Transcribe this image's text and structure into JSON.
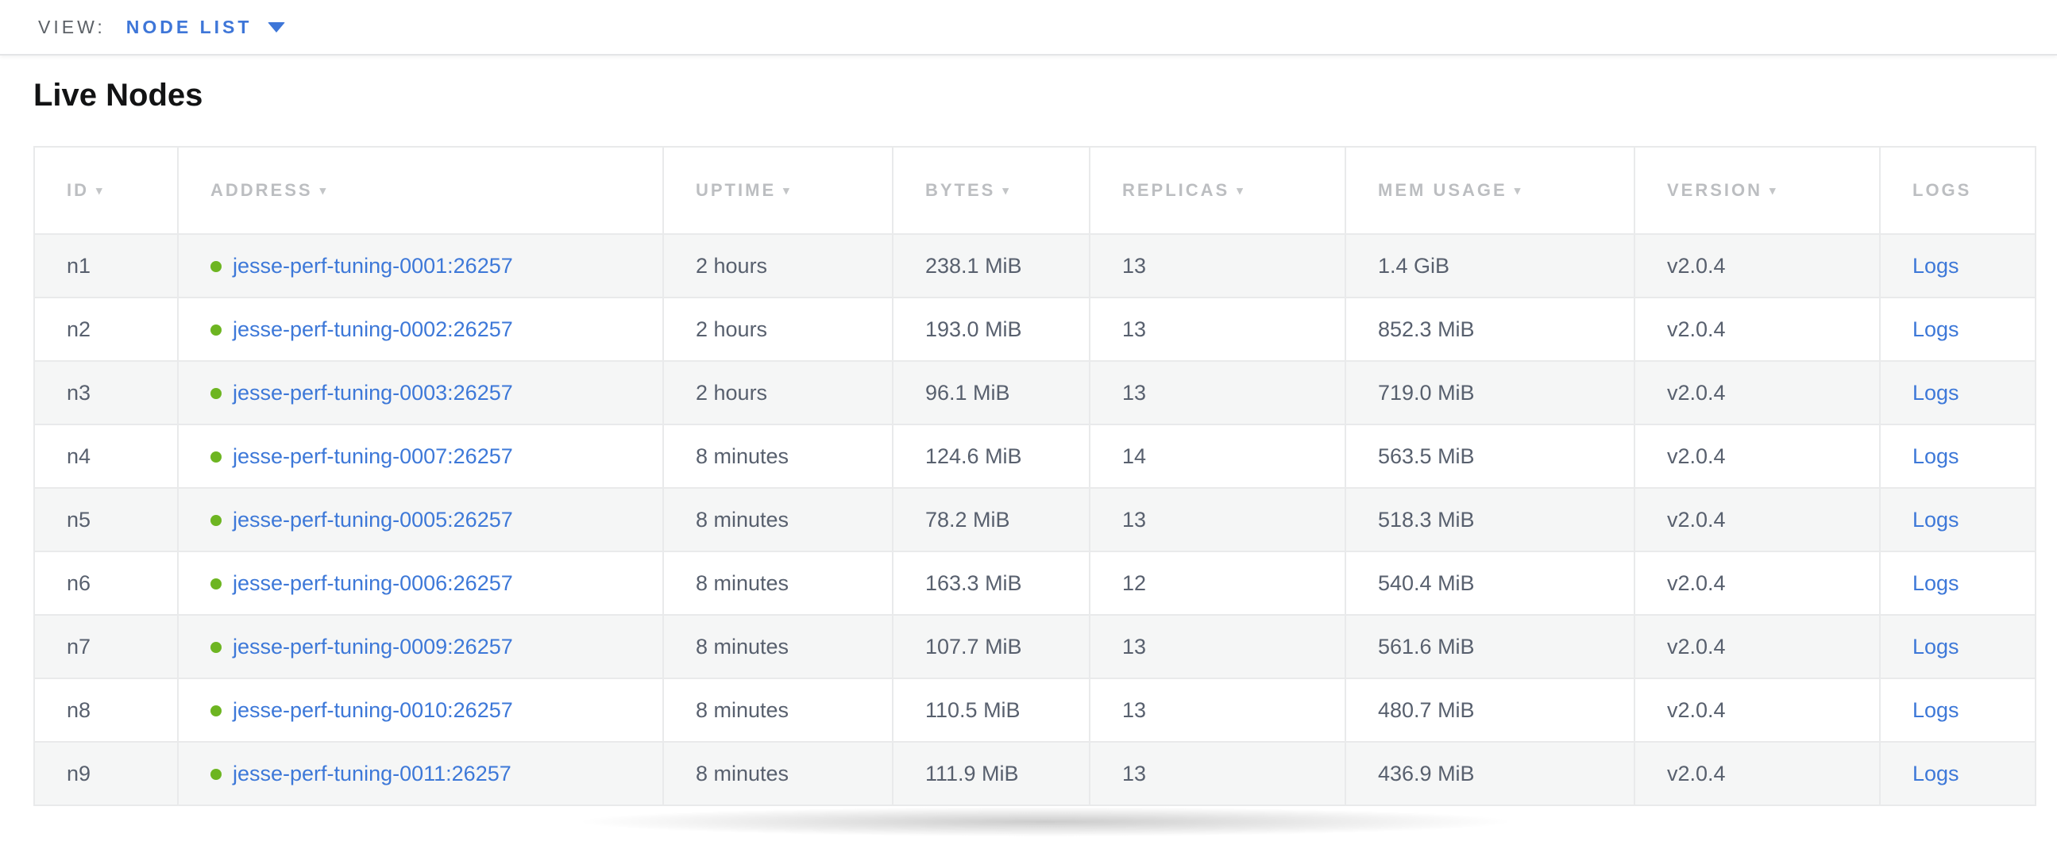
{
  "view_bar": {
    "label": "VIEW:",
    "selected": "NODE LIST"
  },
  "page": {
    "title": "Live Nodes"
  },
  "table": {
    "columns": [
      {
        "key": "id",
        "label": "ID",
        "sortable": true
      },
      {
        "key": "address",
        "label": "ADDRESS",
        "sortable": true
      },
      {
        "key": "uptime",
        "label": "UPTIME",
        "sortable": true
      },
      {
        "key": "bytes",
        "label": "BYTES",
        "sortable": true
      },
      {
        "key": "replicas",
        "label": "REPLICAS",
        "sortable": true
      },
      {
        "key": "mem_usage",
        "label": "MEM USAGE",
        "sortable": true
      },
      {
        "key": "version",
        "label": "VERSION",
        "sortable": true
      },
      {
        "key": "logs",
        "label": "LOGS",
        "sortable": false
      }
    ],
    "rows": [
      {
        "id": "n1",
        "status": "live",
        "address": "jesse-perf-tuning-0001:26257",
        "uptime": "2 hours",
        "bytes": "238.1 MiB",
        "replicas": "13",
        "mem_usage": "1.4 GiB",
        "version": "v2.0.4",
        "logs_label": "Logs"
      },
      {
        "id": "n2",
        "status": "live",
        "address": "jesse-perf-tuning-0002:26257",
        "uptime": "2 hours",
        "bytes": "193.0 MiB",
        "replicas": "13",
        "mem_usage": "852.3 MiB",
        "version": "v2.0.4",
        "logs_label": "Logs"
      },
      {
        "id": "n3",
        "status": "live",
        "address": "jesse-perf-tuning-0003:26257",
        "uptime": "2 hours",
        "bytes": "96.1 MiB",
        "replicas": "13",
        "mem_usage": "719.0 MiB",
        "version": "v2.0.4",
        "logs_label": "Logs"
      },
      {
        "id": "n4",
        "status": "live",
        "address": "jesse-perf-tuning-0007:26257",
        "uptime": "8 minutes",
        "bytes": "124.6 MiB",
        "replicas": "14",
        "mem_usage": "563.5 MiB",
        "version": "v2.0.4",
        "logs_label": "Logs"
      },
      {
        "id": "n5",
        "status": "live",
        "address": "jesse-perf-tuning-0005:26257",
        "uptime": "8 minutes",
        "bytes": "78.2 MiB",
        "replicas": "13",
        "mem_usage": "518.3 MiB",
        "version": "v2.0.4",
        "logs_label": "Logs"
      },
      {
        "id": "n6",
        "status": "live",
        "address": "jesse-perf-tuning-0006:26257",
        "uptime": "8 minutes",
        "bytes": "163.3 MiB",
        "replicas": "12",
        "mem_usage": "540.4 MiB",
        "version": "v2.0.4",
        "logs_label": "Logs"
      },
      {
        "id": "n7",
        "status": "live",
        "address": "jesse-perf-tuning-0009:26257",
        "uptime": "8 minutes",
        "bytes": "107.7 MiB",
        "replicas": "13",
        "mem_usage": "561.6 MiB",
        "version": "v2.0.4",
        "logs_label": "Logs"
      },
      {
        "id": "n8",
        "status": "live",
        "address": "jesse-perf-tuning-0010:26257",
        "uptime": "8 minutes",
        "bytes": "110.5 MiB",
        "replicas": "13",
        "mem_usage": "480.7 MiB",
        "version": "v2.0.4",
        "logs_label": "Logs"
      },
      {
        "id": "n9",
        "status": "live",
        "address": "jesse-perf-tuning-0011:26257",
        "uptime": "8 minutes",
        "bytes": "111.9 MiB",
        "replicas": "13",
        "mem_usage": "436.9 MiB",
        "version": "v2.0.4",
        "logs_label": "Logs"
      }
    ]
  },
  "colors": {
    "accent": "#3e76d8",
    "link": "#3d78d8",
    "live_dot": "#6db521",
    "header_text": "#bcbec1",
    "cell_text": "#58606e",
    "row_stripe": "#f5f6f6"
  }
}
